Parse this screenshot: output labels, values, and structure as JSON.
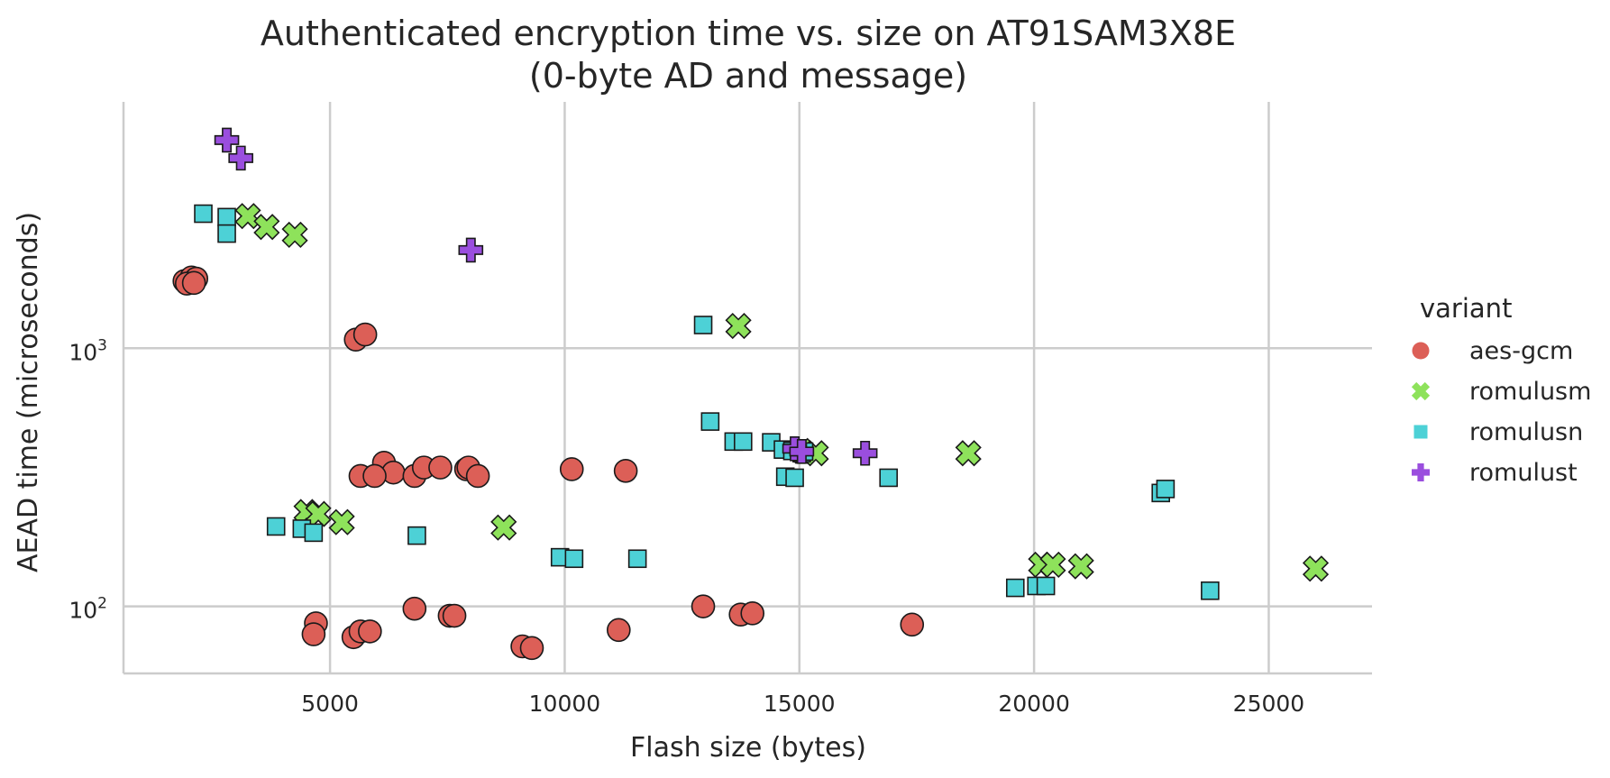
{
  "chart_data": {
    "type": "scatter",
    "title_line1": "Authenticated encryption time vs. size on AT91SAM3X8E",
    "title_line2": "(0-byte AD and message)",
    "xlabel": "Flash size (bytes)",
    "ylabel": "AEAD time (microseconds)",
    "xlim": [
      600,
      27200
    ],
    "ylim": [
      55,
      9000
    ],
    "yscale": "log",
    "grid": true,
    "x_ticks": [
      5000,
      10000,
      15000,
      20000,
      25000
    ],
    "x_tick_labels": [
      "5000",
      "10000",
      "15000",
      "20000",
      "25000"
    ],
    "y_ticks": [
      100,
      1000
    ],
    "y_tick_labels": [
      {
        "base": "10",
        "exp": "2"
      },
      {
        "base": "10",
        "exp": "3"
      }
    ],
    "legend_title": "variant",
    "legend_position": "right",
    "series": [
      {
        "name": "aes-gcm",
        "marker": "circle",
        "color": "#dc5f57",
        "points": [
          [
            1900,
            1820
          ],
          [
            2050,
            1880
          ],
          [
            2150,
            1860
          ],
          [
            1950,
            1780
          ],
          [
            2100,
            1790
          ],
          [
            5550,
            1080
          ],
          [
            5750,
            1130
          ],
          [
            6150,
            360
          ],
          [
            6350,
            330
          ],
          [
            5650,
            320
          ],
          [
            5950,
            320
          ],
          [
            6800,
            320
          ],
          [
            7000,
            345
          ],
          [
            7350,
            345
          ],
          [
            7900,
            340
          ],
          [
            7950,
            345
          ],
          [
            8150,
            320
          ],
          [
            10150,
            340
          ],
          [
            11300,
            335
          ],
          [
            4700,
            86
          ],
          [
            4650,
            78
          ],
          [
            5500,
            76
          ],
          [
            5650,
            80
          ],
          [
            5850,
            80
          ],
          [
            6800,
            98
          ],
          [
            7550,
            92
          ],
          [
            7650,
            92
          ],
          [
            9100,
            70
          ],
          [
            9300,
            69
          ],
          [
            11150,
            81
          ],
          [
            12950,
            100
          ],
          [
            13750,
            93
          ],
          [
            14000,
            94
          ],
          [
            17400,
            85
          ]
        ]
      },
      {
        "name": "romulusm",
        "marker": "x",
        "color": "#8ee25b",
        "points": [
          [
            3250,
            3250
          ],
          [
            3650,
            2950
          ],
          [
            4250,
            2750
          ],
          [
            13700,
            1220
          ],
          [
            4500,
            232
          ],
          [
            4750,
            228
          ],
          [
            5250,
            212
          ],
          [
            8700,
            202
          ],
          [
            15050,
            400
          ],
          [
            15350,
            392
          ],
          [
            18600,
            392
          ],
          [
            20150,
            145
          ],
          [
            20400,
            145
          ],
          [
            21000,
            143
          ],
          [
            26000,
            140
          ]
        ]
      },
      {
        "name": "romulusn",
        "marker": "square",
        "color": "#4dd1d6",
        "points": [
          [
            2300,
            3320
          ],
          [
            2800,
            3220
          ],
          [
            2800,
            2780
          ],
          [
            12950,
            1230
          ],
          [
            13100,
            520
          ],
          [
            13600,
            435
          ],
          [
            13800,
            435
          ],
          [
            14400,
            432
          ],
          [
            14650,
            405
          ],
          [
            14850,
            400
          ],
          [
            15050,
            392
          ],
          [
            15100,
            398
          ],
          [
            14700,
            318
          ],
          [
            14900,
            315
          ],
          [
            16900,
            315
          ],
          [
            3850,
            204
          ],
          [
            4400,
            200
          ],
          [
            4650,
            193
          ],
          [
            6850,
            188
          ],
          [
            9900,
            155
          ],
          [
            10200,
            153
          ],
          [
            11550,
            153
          ],
          [
            19600,
            118
          ],
          [
            20050,
            120
          ],
          [
            20250,
            120
          ],
          [
            23750,
            115
          ],
          [
            22700,
            275
          ],
          [
            22800,
            285
          ]
        ]
      },
      {
        "name": "romulust",
        "marker": "plus",
        "color": "#9a4ede",
        "points": [
          [
            2800,
            6400
          ],
          [
            3100,
            5450
          ],
          [
            8000,
            2400
          ],
          [
            14900,
            408
          ],
          [
            15050,
            398
          ],
          [
            16400,
            392
          ]
        ]
      }
    ]
  }
}
